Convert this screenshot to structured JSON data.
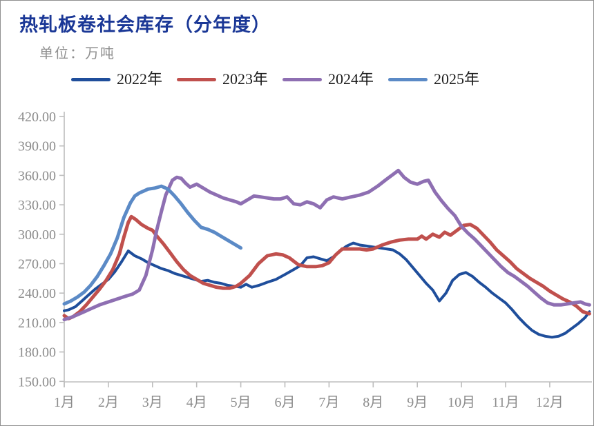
{
  "header": {
    "title": "热轧板卷社会库存（分年度）",
    "title_color": "#1a3796",
    "unit_label": "单位：万吨",
    "unit_color": "#8f8f8f"
  },
  "chart_data": {
    "type": "line",
    "title": "热轧板卷社会库存（分年度）",
    "unit": "万吨",
    "grid": false,
    "legend_position": "top",
    "background": "#ffffff",
    "axis_color": "#bdbdbd",
    "tick_text_color": "#8c8c8c",
    "x_axis": {
      "label": "",
      "type": "month",
      "tick_labels": [
        "1月",
        "2月",
        "3月",
        "4月",
        "5月",
        "6月",
        "7月",
        "8月",
        "9月",
        "10月",
        "11月",
        "12月"
      ]
    },
    "y_axis": {
      "label": "",
      "min": 150,
      "max": 420,
      "step": 30,
      "tick_labels": [
        "420.00",
        "390.00",
        "360.00",
        "330.00",
        "300.00",
        "270.00",
        "240.00",
        "210.00",
        "180.00",
        "150.00"
      ]
    },
    "series": [
      {
        "name": "2022年",
        "color": "#1f4e9b",
        "line_width": 4,
        "points": [
          [
            1,
            222
          ],
          [
            1.1,
            223
          ],
          [
            1.25,
            226
          ],
          [
            1.4,
            232
          ],
          [
            1.55,
            238
          ],
          [
            1.7,
            244
          ],
          [
            1.85,
            249
          ],
          [
            2,
            254
          ],
          [
            2.15,
            262
          ],
          [
            2.3,
            272
          ],
          [
            2.45,
            283
          ],
          [
            2.6,
            278
          ],
          [
            2.75,
            275
          ],
          [
            2.9,
            271
          ],
          [
            3.05,
            268
          ],
          [
            3.2,
            265
          ],
          [
            3.35,
            263
          ],
          [
            3.5,
            260
          ],
          [
            3.65,
            258
          ],
          [
            3.8,
            256
          ],
          [
            3.95,
            254
          ],
          [
            4.1,
            252
          ],
          [
            4.25,
            253
          ],
          [
            4.4,
            251
          ],
          [
            4.55,
            250
          ],
          [
            4.7,
            248
          ],
          [
            4.85,
            247
          ],
          [
            5,
            246
          ],
          [
            5.12,
            249
          ],
          [
            5.25,
            246
          ],
          [
            5.42,
            248
          ],
          [
            5.6,
            251
          ],
          [
            5.8,
            254
          ],
          [
            6,
            259
          ],
          [
            6.2,
            264
          ],
          [
            6.35,
            268
          ],
          [
            6.5,
            276
          ],
          [
            6.65,
            277
          ],
          [
            6.8,
            275
          ],
          [
            6.95,
            273
          ],
          [
            7.1,
            277
          ],
          [
            7.25,
            283
          ],
          [
            7.4,
            288
          ],
          [
            7.55,
            291
          ],
          [
            7.7,
            289
          ],
          [
            7.85,
            288
          ],
          [
            8,
            287
          ],
          [
            8.15,
            286
          ],
          [
            8.3,
            285
          ],
          [
            8.45,
            284
          ],
          [
            8.6,
            280
          ],
          [
            8.75,
            274
          ],
          [
            8.9,
            266
          ],
          [
            9.05,
            258
          ],
          [
            9.2,
            250
          ],
          [
            9.35,
            243
          ],
          [
            9.5,
            232
          ],
          [
            9.65,
            240
          ],
          [
            9.8,
            253
          ],
          [
            9.95,
            259
          ],
          [
            10.1,
            261
          ],
          [
            10.25,
            257
          ],
          [
            10.4,
            251
          ],
          [
            10.55,
            246
          ],
          [
            10.7,
            240
          ],
          [
            10.85,
            235
          ],
          [
            11,
            230
          ],
          [
            11.15,
            223
          ],
          [
            11.3,
            215
          ],
          [
            11.45,
            208
          ],
          [
            11.6,
            202
          ],
          [
            11.75,
            198
          ],
          [
            11.9,
            196
          ],
          [
            12.05,
            195
          ],
          [
            12.2,
            196
          ],
          [
            12.35,
            199
          ],
          [
            12.5,
            204
          ],
          [
            12.65,
            209
          ],
          [
            12.8,
            215
          ],
          [
            12.9,
            221
          ]
        ]
      },
      {
        "name": "2023年",
        "color": "#c0504d",
        "line_width": 5,
        "points": [
          [
            1,
            217
          ],
          [
            1.1,
            214
          ],
          [
            1.2,
            216
          ],
          [
            1.35,
            221
          ],
          [
            1.5,
            228
          ],
          [
            1.65,
            236
          ],
          [
            1.8,
            244
          ],
          [
            1.95,
            253
          ],
          [
            2.1,
            264
          ],
          [
            2.25,
            280
          ],
          [
            2.35,
            297
          ],
          [
            2.45,
            312
          ],
          [
            2.52,
            318
          ],
          [
            2.62,
            315
          ],
          [
            2.75,
            310
          ],
          [
            2.9,
            306
          ],
          [
            3,
            304
          ],
          [
            3.1,
            298
          ],
          [
            3.25,
            290
          ],
          [
            3.4,
            281
          ],
          [
            3.55,
            272
          ],
          [
            3.7,
            264
          ],
          [
            3.85,
            258
          ],
          [
            4,
            254
          ],
          [
            4.15,
            250
          ],
          [
            4.3,
            248
          ],
          [
            4.45,
            246
          ],
          [
            4.6,
            245
          ],
          [
            4.75,
            245
          ],
          [
            4.9,
            247
          ],
          [
            5,
            250
          ],
          [
            5.2,
            258
          ],
          [
            5.4,
            270
          ],
          [
            5.6,
            278
          ],
          [
            5.8,
            280
          ],
          [
            5.95,
            279
          ],
          [
            6.1,
            276
          ],
          [
            6.3,
            269
          ],
          [
            6.5,
            267
          ],
          [
            6.7,
            267
          ],
          [
            6.85,
            268
          ],
          [
            7,
            271
          ],
          [
            7.15,
            279
          ],
          [
            7.3,
            285
          ],
          [
            7.5,
            285
          ],
          [
            7.7,
            285
          ],
          [
            7.85,
            284
          ],
          [
            8,
            285
          ],
          [
            8.2,
            289
          ],
          [
            8.4,
            292
          ],
          [
            8.6,
            294
          ],
          [
            8.8,
            295
          ],
          [
            9,
            295
          ],
          [
            9.1,
            298
          ],
          [
            9.2,
            295
          ],
          [
            9.35,
            300
          ],
          [
            9.5,
            297
          ],
          [
            9.62,
            302
          ],
          [
            9.75,
            299
          ],
          [
            9.9,
            304
          ],
          [
            10.05,
            309
          ],
          [
            10.2,
            310
          ],
          [
            10.35,
            306
          ],
          [
            10.5,
            299
          ],
          [
            10.65,
            292
          ],
          [
            10.8,
            284
          ],
          [
            10.95,
            278
          ],
          [
            11.1,
            272
          ],
          [
            11.25,
            265
          ],
          [
            11.4,
            260
          ],
          [
            11.55,
            255
          ],
          [
            11.7,
            251
          ],
          [
            11.85,
            247
          ],
          [
            12,
            242
          ],
          [
            12.15,
            238
          ],
          [
            12.3,
            234
          ],
          [
            12.45,
            231
          ],
          [
            12.6,
            227
          ],
          [
            12.75,
            221
          ],
          [
            12.9,
            219
          ]
        ]
      },
      {
        "name": "2024年",
        "color": "#8e6fb2",
        "line_width": 5,
        "points": [
          [
            1,
            213
          ],
          [
            1.2,
            216
          ],
          [
            1.4,
            220
          ],
          [
            1.6,
            224
          ],
          [
            1.8,
            228
          ],
          [
            2,
            231
          ],
          [
            2.2,
            234
          ],
          [
            2.4,
            237
          ],
          [
            2.55,
            239
          ],
          [
            2.7,
            243
          ],
          [
            2.85,
            258
          ],
          [
            3,
            284
          ],
          [
            3.1,
            305
          ],
          [
            3.2,
            323
          ],
          [
            3.3,
            340
          ],
          [
            3.45,
            355
          ],
          [
            3.55,
            358
          ],
          [
            3.65,
            357
          ],
          [
            3.75,
            352
          ],
          [
            3.85,
            348
          ],
          [
            4,
            351
          ],
          [
            4.15,
            347
          ],
          [
            4.3,
            343
          ],
          [
            4.45,
            340
          ],
          [
            4.6,
            337
          ],
          [
            4.75,
            335
          ],
          [
            4.9,
            333
          ],
          [
            5,
            331
          ],
          [
            5.15,
            335
          ],
          [
            5.3,
            339
          ],
          [
            5.45,
            338
          ],
          [
            5.6,
            337
          ],
          [
            5.75,
            336
          ],
          [
            5.9,
            336
          ],
          [
            6.05,
            338
          ],
          [
            6.2,
            331
          ],
          [
            6.35,
            330
          ],
          [
            6.5,
            333
          ],
          [
            6.65,
            331
          ],
          [
            6.8,
            327
          ],
          [
            6.95,
            335
          ],
          [
            7.1,
            338
          ],
          [
            7.3,
            336
          ],
          [
            7.5,
            338
          ],
          [
            7.7,
            340
          ],
          [
            7.9,
            343
          ],
          [
            8.1,
            349
          ],
          [
            8.3,
            356
          ],
          [
            8.45,
            361
          ],
          [
            8.57,
            365
          ],
          [
            8.7,
            358
          ],
          [
            8.85,
            353
          ],
          [
            9,
            351
          ],
          [
            9.15,
            354
          ],
          [
            9.25,
            355
          ],
          [
            9.4,
            343
          ],
          [
            9.55,
            334
          ],
          [
            9.7,
            326
          ],
          [
            9.85,
            319
          ],
          [
            10,
            308
          ],
          [
            10.15,
            301
          ],
          [
            10.3,
            295
          ],
          [
            10.45,
            288
          ],
          [
            10.6,
            281
          ],
          [
            10.75,
            274
          ],
          [
            10.9,
            267
          ],
          [
            11.05,
            261
          ],
          [
            11.2,
            257
          ],
          [
            11.35,
            252
          ],
          [
            11.5,
            247
          ],
          [
            11.65,
            241
          ],
          [
            11.8,
            235
          ],
          [
            11.95,
            230
          ],
          [
            12.1,
            228
          ],
          [
            12.25,
            228
          ],
          [
            12.4,
            229
          ],
          [
            12.55,
            230
          ],
          [
            12.7,
            231
          ],
          [
            12.8,
            229
          ],
          [
            12.9,
            228
          ]
        ]
      },
      {
        "name": "2025年",
        "color": "#5b8ac6",
        "line_width": 5,
        "points": [
          [
            1,
            229
          ],
          [
            1.15,
            232
          ],
          [
            1.3,
            236
          ],
          [
            1.45,
            241
          ],
          [
            1.6,
            248
          ],
          [
            1.75,
            257
          ],
          [
            1.9,
            268
          ],
          [
            2.05,
            280
          ],
          [
            2.2,
            296
          ],
          [
            2.35,
            317
          ],
          [
            2.5,
            332
          ],
          [
            2.6,
            339
          ],
          [
            2.7,
            342
          ],
          [
            2.8,
            344
          ],
          [
            2.9,
            346
          ],
          [
            3.05,
            347
          ],
          [
            3.2,
            349
          ],
          [
            3.35,
            346
          ],
          [
            3.5,
            339
          ],
          [
            3.65,
            331
          ],
          [
            3.8,
            322
          ],
          [
            3.95,
            314
          ],
          [
            4.1,
            307
          ],
          [
            4.25,
            305
          ],
          [
            4.4,
            302
          ],
          [
            4.55,
            298
          ],
          [
            4.7,
            294
          ],
          [
            4.85,
            290
          ],
          [
            5,
            286
          ]
        ]
      }
    ]
  }
}
